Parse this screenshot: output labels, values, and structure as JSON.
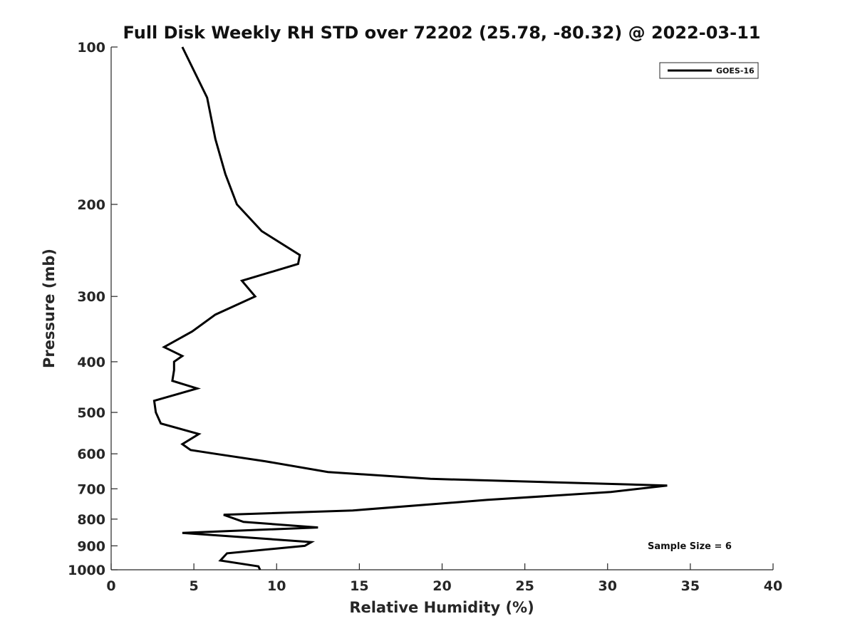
{
  "chart_data": {
    "type": "line",
    "title": "Full Disk Weekly RH STD over 72202 (25.78, -80.32) @ 2022-03-11",
    "xlabel": "Relative Humidity (%)",
    "ylabel": "Pressure (mb)",
    "xlim": [
      0,
      40
    ],
    "ylim": [
      100,
      1000
    ],
    "y_scale": "log",
    "y_reversed": true,
    "x_ticks": [
      0,
      5,
      10,
      15,
      20,
      25,
      30,
      35,
      40
    ],
    "x_tick_labels": [
      "0",
      "5",
      "10",
      "15",
      "20",
      "25",
      "30",
      "35",
      "40"
    ],
    "y_ticks": [
      100,
      200,
      300,
      400,
      500,
      600,
      700,
      800,
      900,
      1000
    ],
    "y_tick_labels": [
      "100",
      "200",
      "300",
      "400",
      "500",
      "600",
      "700",
      "800",
      "900",
      "1000"
    ],
    "grid": false,
    "legend": {
      "position": "top-right",
      "entries": [
        "GOES-16"
      ]
    },
    "annotation": "Sample Size = 6",
    "line_color": "#000000",
    "series": [
      {
        "name": "GOES-16",
        "x": [
          4.3,
          5.8,
          6.3,
          6.9,
          7.6,
          9.1,
          11.4,
          11.3,
          7.9,
          8.7,
          6.3,
          4.9,
          3.2,
          4.3,
          3.8,
          3.8,
          3.7,
          5.2,
          2.6,
          2.7,
          3.0,
          5.3,
          4.3,
          4.8,
          6.3,
          9.3,
          13.1,
          19.3,
          33.6,
          30.2,
          22.7,
          14.6,
          6.8,
          8.0,
          12.5,
          4.3,
          12.1,
          11.7,
          7.0,
          6.6,
          8.9,
          9.0
        ],
        "y": [
          100,
          125,
          150,
          175,
          200,
          225,
          250,
          260,
          280,
          300,
          325,
          350,
          375,
          390,
          400,
          415,
          435,
          450,
          475,
          500,
          525,
          550,
          575,
          590,
          600,
          620,
          650,
          670,
          690,
          710,
          735,
          770,
          785,
          810,
          830,
          850,
          885,
          900,
          930,
          960,
          985,
          1000
        ]
      }
    ]
  }
}
